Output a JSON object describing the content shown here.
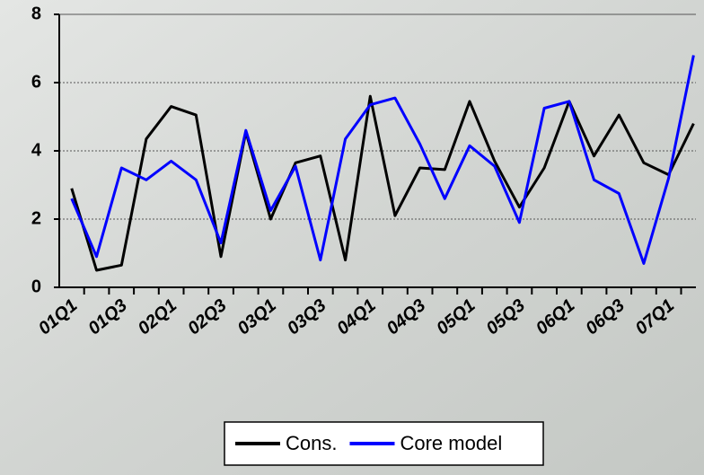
{
  "chart_data": {
    "type": "line",
    "categories": [
      "01Q1",
      null,
      "01Q3",
      null,
      "02Q1",
      null,
      "02Q3",
      null,
      "03Q1",
      null,
      "03Q3",
      null,
      "04Q1",
      null,
      "04Q3",
      null,
      "05Q1",
      null,
      "05Q3",
      null,
      "06Q1",
      null,
      "06Q3",
      null,
      "07Q1",
      null
    ],
    "series": [
      {
        "name": "Cons.",
        "color": "#000000",
        "values": [
          2.9,
          0.5,
          0.65,
          4.35,
          5.3,
          5.05,
          0.9,
          4.55,
          2.0,
          3.65,
          3.85,
          0.8,
          5.6,
          2.1,
          3.5,
          3.45,
          5.45,
          3.7,
          2.35,
          3.5,
          5.45,
          3.85,
          5.05,
          3.65,
          3.3,
          4.8
        ]
      },
      {
        "name": "Core model",
        "color": "#0000ff",
        "values": [
          2.6,
          0.9,
          3.5,
          3.15,
          3.7,
          3.15,
          1.3,
          4.6,
          2.25,
          3.55,
          0.8,
          4.35,
          5.35,
          5.55,
          4.2,
          2.6,
          4.15,
          3.55,
          1.9,
          5.25,
          5.45,
          3.15,
          2.75,
          0.7,
          3.2,
          6.8
        ]
      }
    ],
    "ylim": [
      0,
      8
    ],
    "yticks": [
      0,
      2,
      4,
      6,
      8
    ],
    "grid": true,
    "legend": "bottom"
  }
}
